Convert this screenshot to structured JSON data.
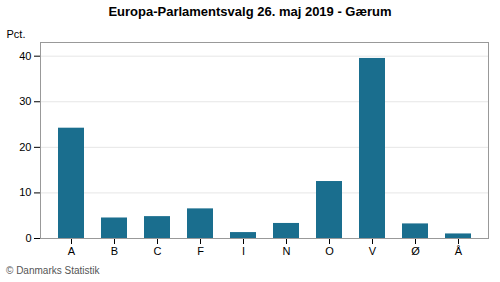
{
  "chart_data": {
    "type": "bar",
    "title": "Europa-Parlamentsvalg 26. maj 2019 - Gærum",
    "caption": "© Danmarks Statistik",
    "ylabel": "Pct.",
    "categories": [
      "A",
      "B",
      "C",
      "F",
      "I",
      "N",
      "O",
      "V",
      "Ø",
      "Å"
    ],
    "values": [
      24.2,
      4.5,
      4.8,
      6.5,
      1.3,
      3.3,
      12.5,
      39.5,
      3.2,
      1.0
    ],
    "color": "#1a6e8e",
    "ylim": [
      0,
      43
    ],
    "yticks": [
      0,
      10,
      20,
      30,
      40
    ],
    "grid": true
  }
}
